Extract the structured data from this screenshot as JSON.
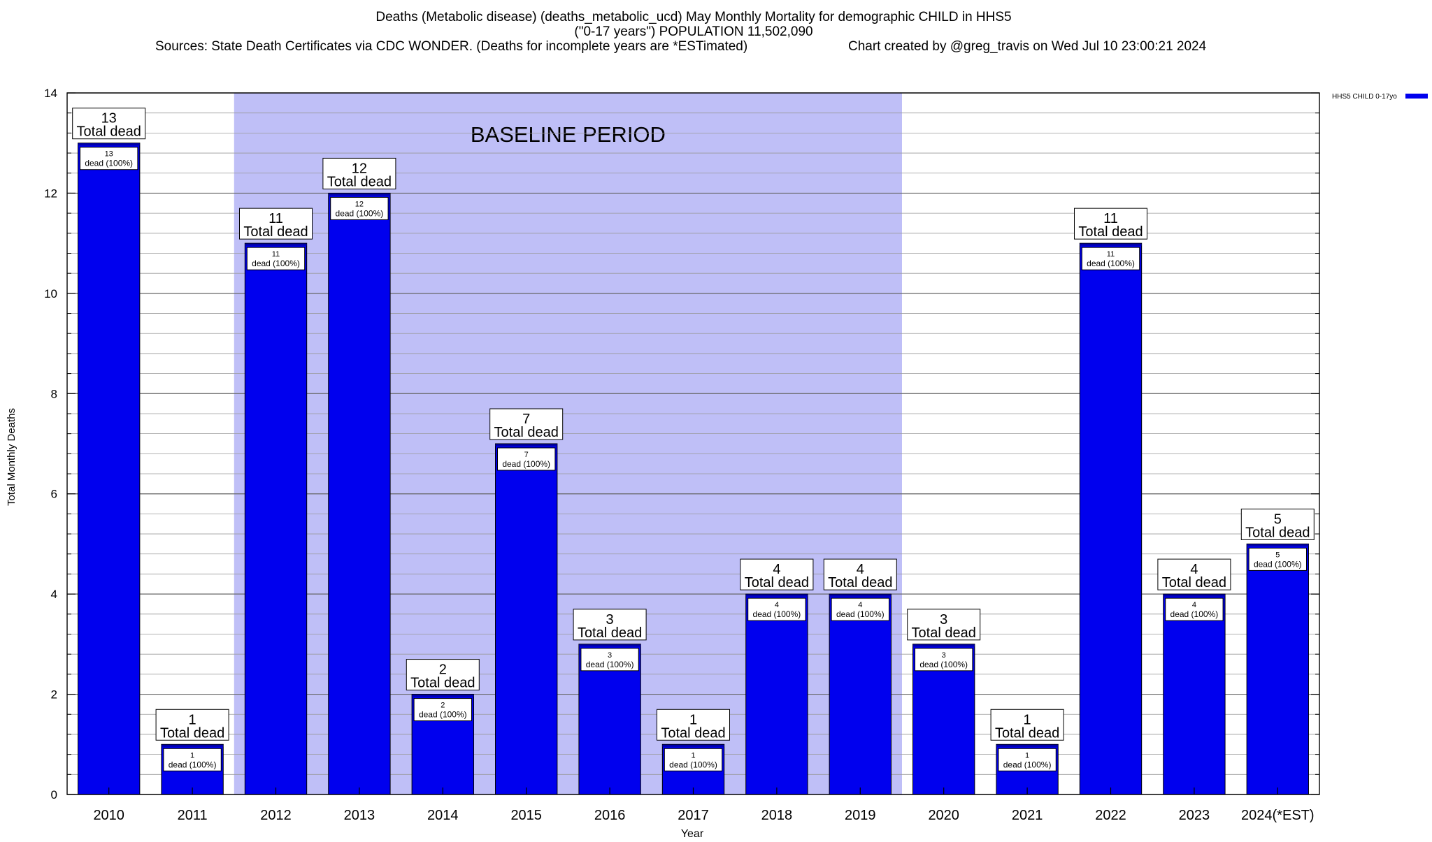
{
  "chart_data": {
    "type": "bar",
    "title_lines": [
      "Deaths (Metabolic disease) (deaths_metabolic_ucd) May Monthly Mortality for demographic CHILD in HHS5",
      "(\"0-17 years\") POPULATION 11,502,090"
    ],
    "sources": "Sources: State Death Certificates via CDC WONDER. (Deaths for incomplete years are *ESTimated)",
    "credit": "Chart created by @greg_travis on Wed Jul 10 23:00:21 2024",
    "xlabel": "Year",
    "ylabel": "Total Monthly Deaths",
    "ylim": [
      0,
      14
    ],
    "yticks": [
      0,
      2,
      4,
      6,
      8,
      10,
      12,
      14
    ],
    "minor_tick_step": 0.4,
    "grid": true,
    "categories": [
      "2010",
      "2011",
      "2012",
      "2013",
      "2014",
      "2015",
      "2016",
      "2017",
      "2018",
      "2019",
      "2020",
      "2021",
      "2022",
      "2023",
      "2024(*EST)"
    ],
    "series": [
      {
        "name": "HHS5 CHILD 0-17yo",
        "values": [
          13,
          1,
          11,
          12,
          2,
          7,
          3,
          1,
          4,
          4,
          3,
          1,
          11,
          4,
          5
        ],
        "inner_labels": [
          "dead (100%)",
          "dead (100%)",
          "dead (100%)",
          "dead (100%)",
          "dead (100%)",
          "dead (100%)",
          "dead (100%)",
          "dead (100%)",
          "dead (100%)",
          "dead (100%)",
          "dead (100%)",
          "dead (100%)",
          "dead (100%)",
          "dead (100%)",
          "dead (100%)"
        ],
        "color": "#0000ee"
      }
    ],
    "total_label": "Total dead",
    "baseline": {
      "label": "BASELINE PERIOD",
      "from": "2012",
      "to": "2019",
      "color": "#bfbff7"
    },
    "legend_position": "top-right"
  }
}
